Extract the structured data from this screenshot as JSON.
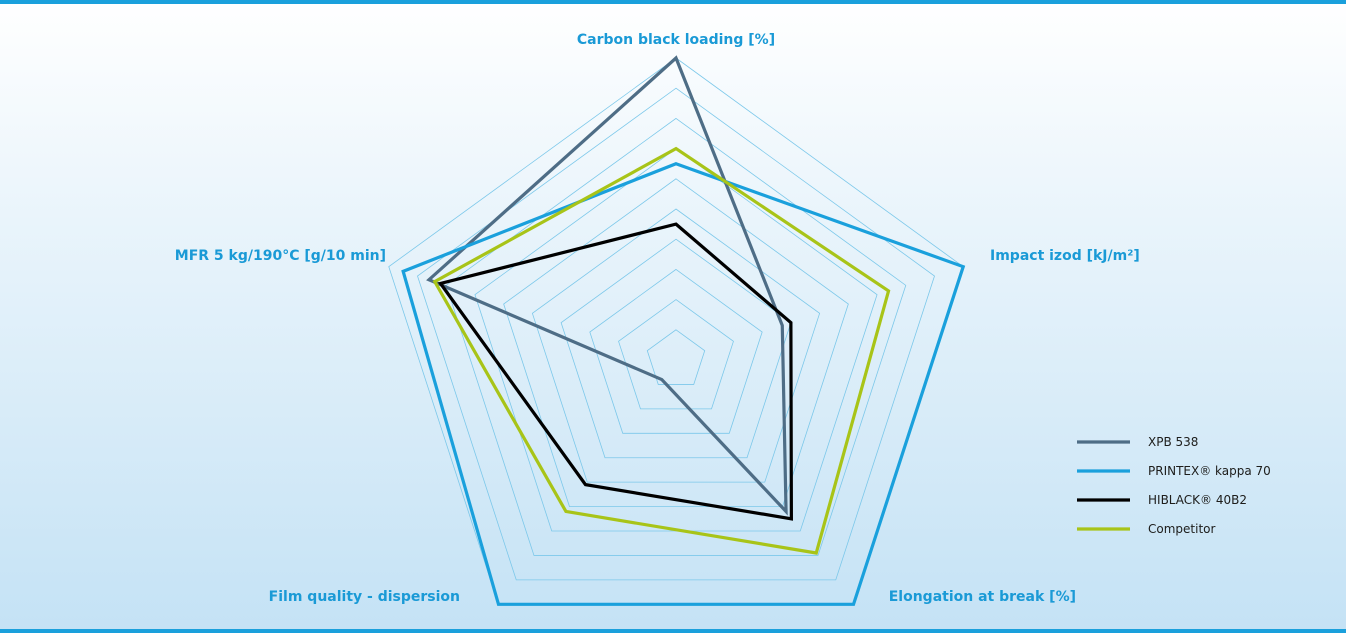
{
  "chart_data": {
    "type": "radar",
    "title": "",
    "axes": [
      "Carbon black loading [%]",
      "Impact izod [kJ/m²]",
      "Elongation at break [%]",
      "Film quality - dispersion",
      "MFR 5 kg/190°C [g/10 min]"
    ],
    "scale": {
      "min": 0,
      "max": 10,
      "rings": 10
    },
    "grid": true,
    "legend_position": "bottom-right",
    "series": [
      {
        "name": "XPB 538",
        "color": "#4e6d86",
        "values": [
          10,
          3.7,
          6.2,
          0.8,
          8.6
        ]
      },
      {
        "name": "PRINTEX® kappa 70",
        "color": "#1aa0dc",
        "values": [
          6.5,
          10,
          10,
          10,
          9.5
        ]
      },
      {
        "name": "HIBLACK® 40B2",
        "color": "#000000",
        "values": [
          4.5,
          4,
          6.5,
          5.1,
          8.2
        ]
      },
      {
        "name": "Competitor",
        "color": "#a8c418",
        "values": [
          7,
          7.4,
          7.9,
          6.2,
          8.4
        ]
      }
    ]
  }
}
